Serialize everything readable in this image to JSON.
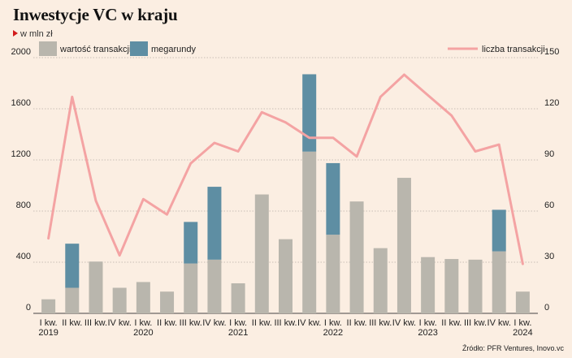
{
  "title": "Inwestycje VC w kraju",
  "subtitle": "w mln zł",
  "source": "Źródło: PFR Ventures, Inovo.vc",
  "colors": {
    "background": "#fbeee2",
    "value_bar": "#b9b6ad",
    "megarounds_bar": "#5e8ea3",
    "count_line": "#f4a3a3",
    "subtitle_marker": "#d21b1b"
  },
  "chart_data": {
    "type": "bar",
    "title": "Inwestycje VC w kraju",
    "ylabel": "w mln zł",
    "categories": [
      "I kw.",
      "II kw.",
      "III kw.",
      "IV kw.",
      "I kw.",
      "II kw.",
      "III kw.",
      "IV kw.",
      "I kw.",
      "II kw.",
      "III kw.",
      "IV kw.",
      "I kw.",
      "II kw.",
      "III kw.",
      "IV kw.",
      "I kw.",
      "II kw.",
      "III kw.",
      "IV kw.",
      "I kw."
    ],
    "years": [
      {
        "label": "2019",
        "index": 0
      },
      {
        "label": "2020",
        "index": 4
      },
      {
        "label": "2021",
        "index": 8
      },
      {
        "label": "2022",
        "index": 12
      },
      {
        "label": "2023",
        "index": 16
      },
      {
        "label": "2024",
        "index": 20
      }
    ],
    "series": [
      {
        "name": "wartość transakcji",
        "type": "bar",
        "axis": "left",
        "values": [
          110,
          200,
          405,
          200,
          245,
          170,
          390,
          420,
          235,
          930,
          580,
          1265,
          615,
          875,
          510,
          1060,
          440,
          425,
          420,
          485,
          170
        ]
      },
      {
        "name": "megarundy",
        "type": "bar-stacked",
        "axis": "left",
        "values": [
          0,
          345,
          0,
          0,
          0,
          0,
          325,
          570,
          0,
          0,
          0,
          605,
          560,
          0,
          0,
          0,
          0,
          0,
          0,
          325,
          0
        ]
      },
      {
        "name": "liczba transakcji",
        "type": "line",
        "axis": "right",
        "values": [
          44,
          127,
          66,
          34,
          67,
          58,
          88,
          100,
          95,
          118,
          112,
          103,
          103,
          92,
          127,
          140,
          128,
          116,
          95,
          99,
          29
        ]
      }
    ],
    "y_left": {
      "ylim": [
        0,
        2000
      ],
      "ticks": [
        "0",
        "400",
        "800",
        "1200",
        "1600",
        "2000"
      ]
    },
    "y_right": {
      "ylim": [
        0,
        150
      ],
      "ticks": [
        "0",
        "30",
        "60",
        "90",
        "120",
        "150"
      ]
    },
    "grid": true,
    "legend_placement": "top"
  }
}
